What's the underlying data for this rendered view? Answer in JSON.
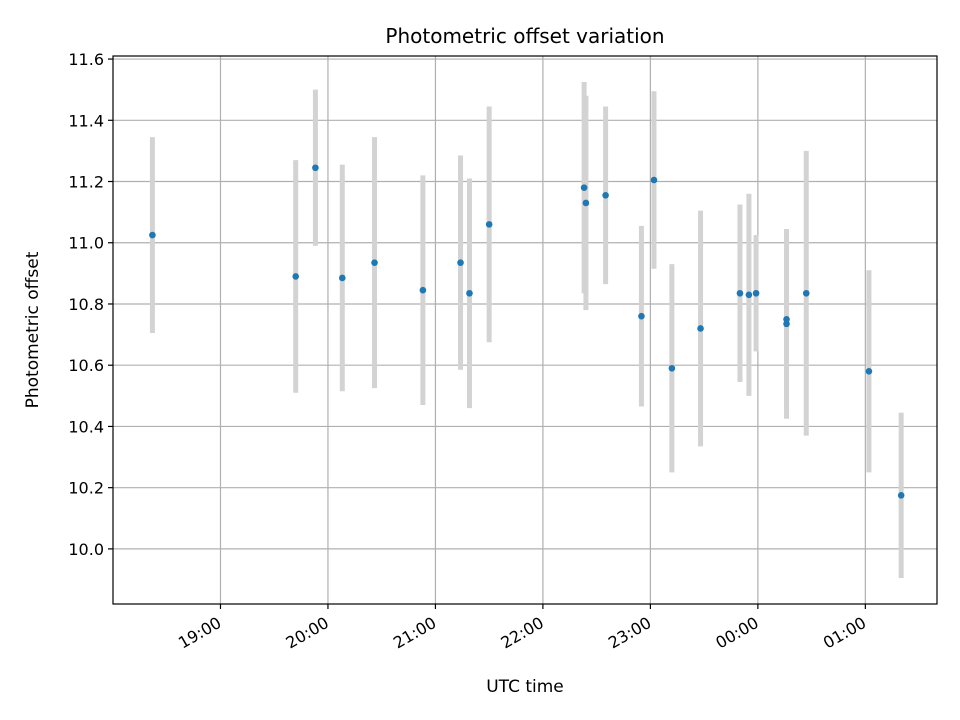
{
  "chart_data": {
    "type": "scatter",
    "title": "Photometric offset variation",
    "xlabel": "UTC time",
    "ylabel": "Photometric offset",
    "x_axis": {
      "kind": "time",
      "range": [
        "18:00",
        "01:40"
      ],
      "ticks": [
        {
          "t": "19:00",
          "label": "19:00"
        },
        {
          "t": "20:00",
          "label": "20:00"
        },
        {
          "t": "21:00",
          "label": "21:00"
        },
        {
          "t": "22:00",
          "label": "22:00"
        },
        {
          "t": "23:00",
          "label": "23:00"
        },
        {
          "t": "00:00",
          "label": "00:00"
        },
        {
          "t": "01:00",
          "label": "01:00"
        }
      ]
    },
    "y_axis": {
      "range": [
        9.82,
        11.61
      ],
      "ticks": [
        10.0,
        10.2,
        10.4,
        10.6,
        10.8,
        11.0,
        11.2,
        11.4,
        11.6
      ],
      "tick_labels": [
        "10.0",
        "10.2",
        "10.4",
        "10.6",
        "10.8",
        "11.0",
        "11.2",
        "11.4",
        "11.6"
      ]
    },
    "grid": true,
    "colors": {
      "point": "#1f77b4",
      "errorbar": "#d3d3d3",
      "grid": "#b0b0b0"
    },
    "points": [
      {
        "t": "18:22",
        "y": 11.025,
        "err": 0.32
      },
      {
        "t": "19:42",
        "y": 10.89,
        "err": 0.38
      },
      {
        "t": "19:53",
        "y": 11.245,
        "err": 0.255
      },
      {
        "t": "20:08",
        "y": 10.885,
        "err": 0.37
      },
      {
        "t": "20:26",
        "y": 10.935,
        "err": 0.41
      },
      {
        "t": "20:53",
        "y": 10.845,
        "err": 0.375
      },
      {
        "t": "21:14",
        "y": 10.935,
        "err": 0.35
      },
      {
        "t": "21:19",
        "y": 10.835,
        "err": 0.375
      },
      {
        "t": "21:30",
        "y": 11.06,
        "err": 0.385
      },
      {
        "t": "22:23",
        "y": 11.18,
        "err": 0.345
      },
      {
        "t": "22:24",
        "y": 11.13,
        "err": 0.35
      },
      {
        "t": "22:35",
        "y": 11.155,
        "err": 0.29
      },
      {
        "t": "22:55",
        "y": 10.76,
        "err": 0.295
      },
      {
        "t": "23:02",
        "y": 11.205,
        "err": 0.29
      },
      {
        "t": "23:12",
        "y": 10.59,
        "err": 0.34
      },
      {
        "t": "23:28",
        "y": 10.72,
        "err": 0.385
      },
      {
        "t": "23:50",
        "y": 10.835,
        "err": 0.29
      },
      {
        "t": "23:55",
        "y": 10.83,
        "err": 0.33
      },
      {
        "t": "23:59",
        "y": 10.835,
        "err": 0.19
      },
      {
        "t": "00:16",
        "y": 10.75,
        "err": 0.29
      },
      {
        "t": "00:16",
        "y": 10.735,
        "err": 0.31
      },
      {
        "t": "00:27",
        "y": 10.835,
        "err": 0.465
      },
      {
        "t": "01:02",
        "y": 10.58,
        "err": 0.33
      },
      {
        "t": "01:20",
        "y": 10.175,
        "err": 0.27
      }
    ]
  }
}
